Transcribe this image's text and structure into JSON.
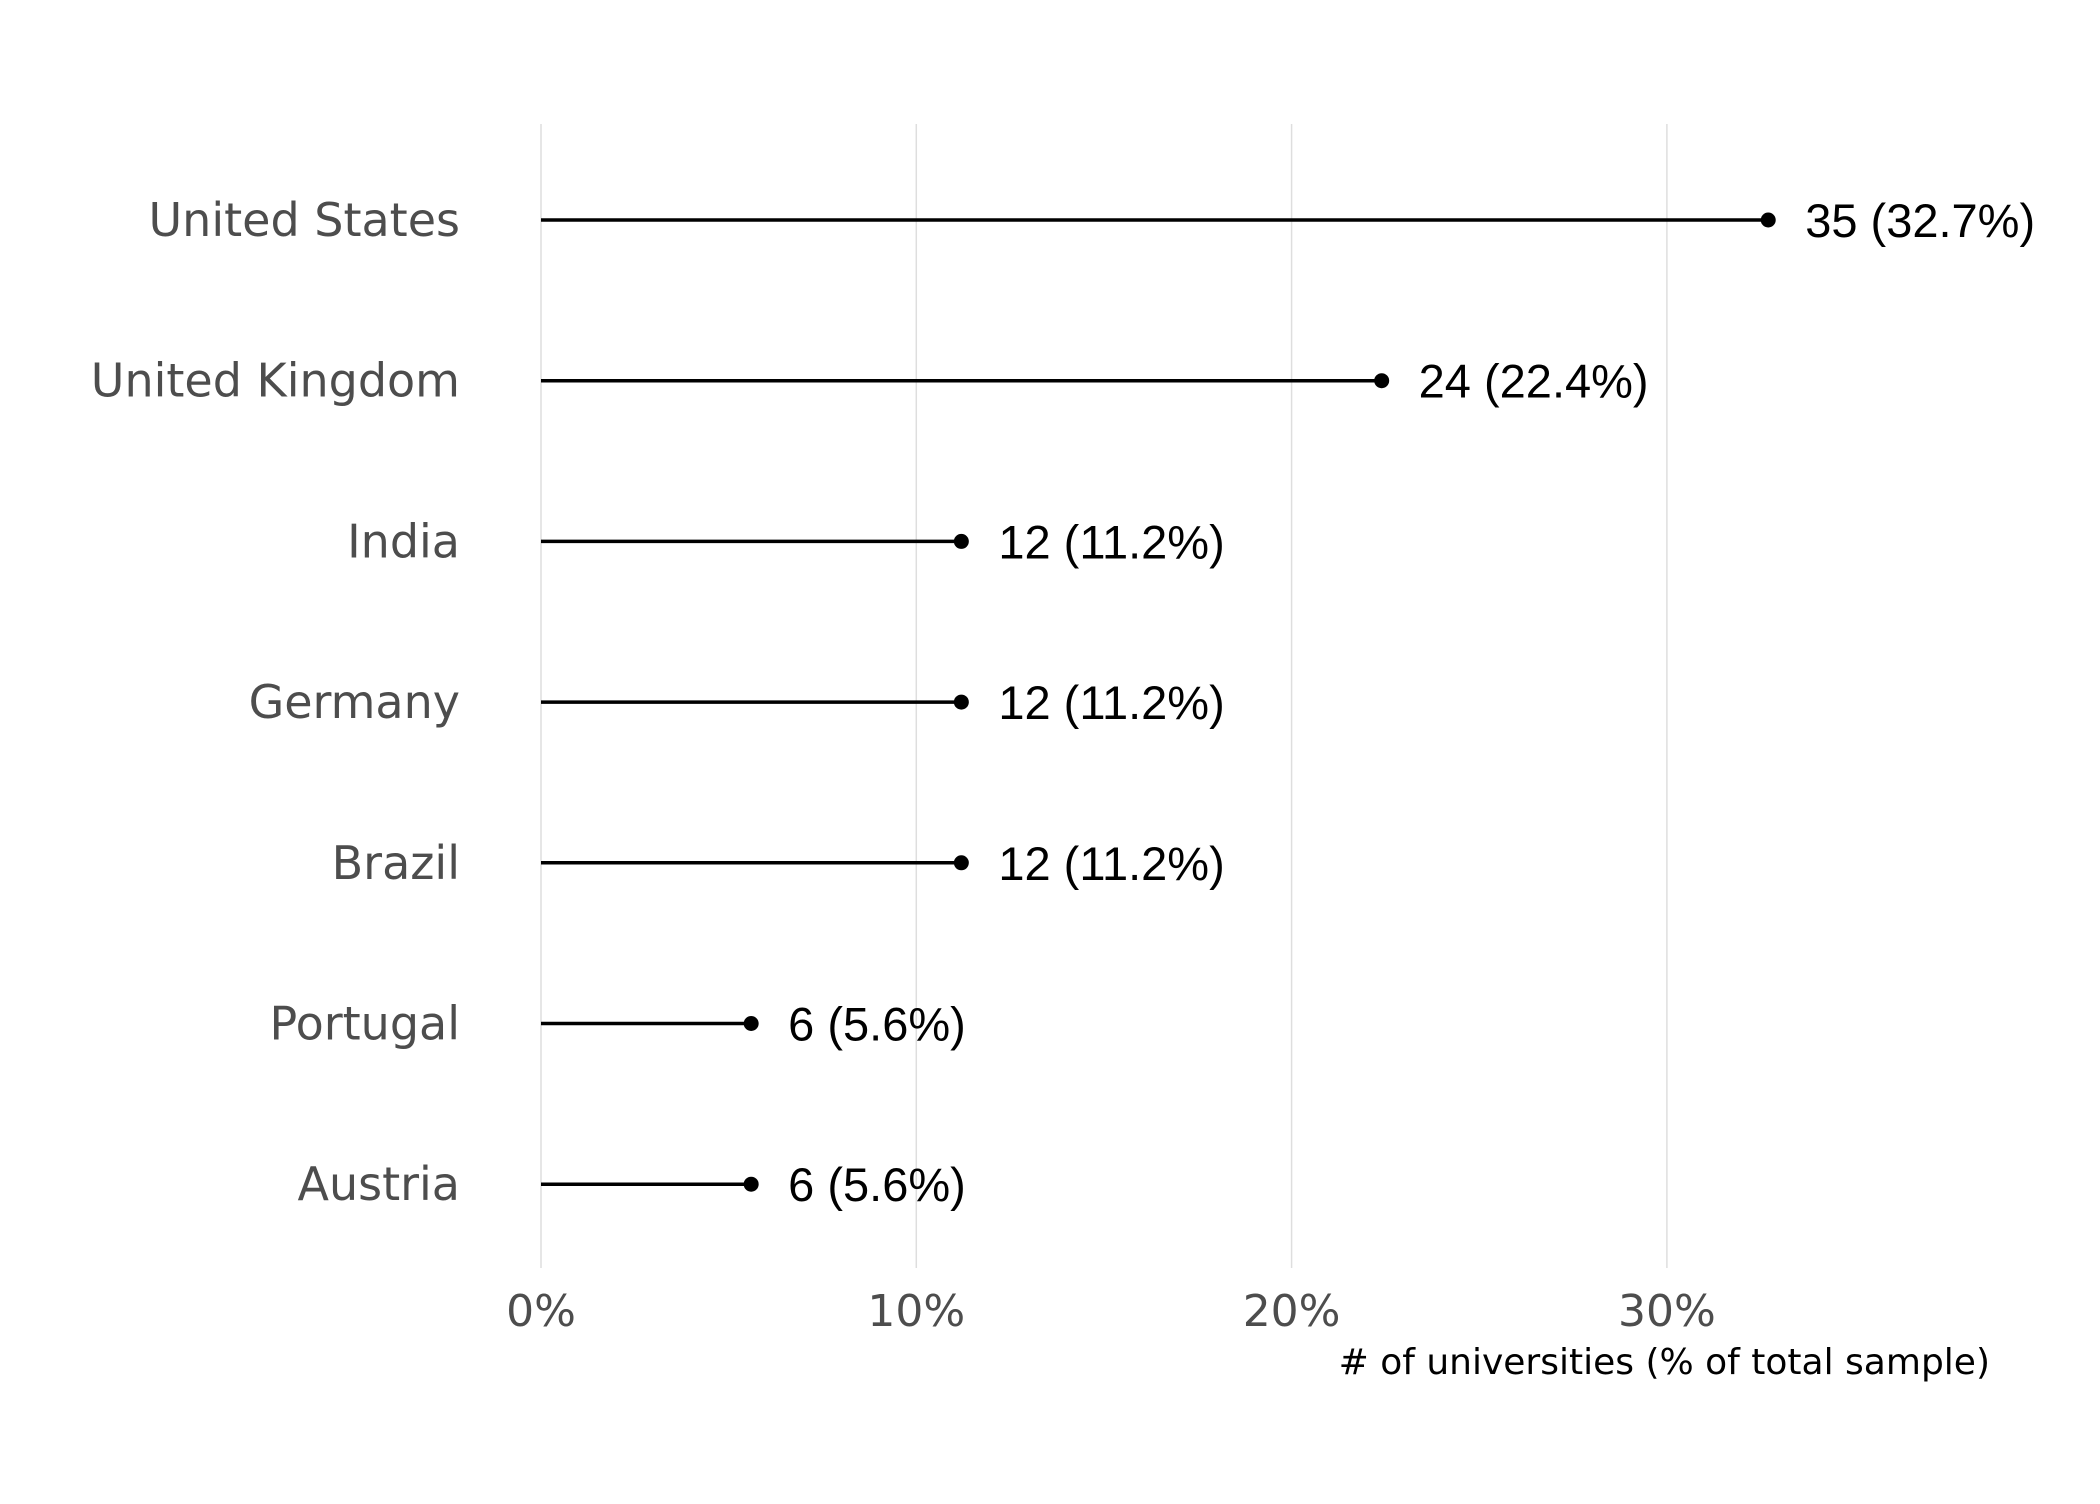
{
  "chart_data": {
    "type": "lollipop",
    "orientation": "horizontal",
    "categories": [
      "United States",
      "United Kingdom",
      "India",
      "Germany",
      "Brazil",
      "Portugal",
      "Austria"
    ],
    "counts": [
      35,
      24,
      12,
      12,
      12,
      6,
      6
    ],
    "values": [
      32.7,
      22.4,
      11.2,
      11.2,
      11.2,
      5.6,
      5.6
    ],
    "data_labels": [
      "35 (32.7%)",
      "24 (22.4%)",
      "12 (11.2%)",
      "12 (11.2%)",
      "12 (11.2%)",
      "6 (5.6%)",
      "6 (5.6%)"
    ],
    "x_ticks": [
      0,
      10,
      20,
      30
    ],
    "x_tick_labels": [
      "0%",
      "10%",
      "20%",
      "30%"
    ],
    "xlim": [
      0,
      36
    ],
    "xlabel": "# of universities (% of total sample)",
    "ylabel": "",
    "title": "",
    "grid": "vertical major gridlines",
    "legend": "none",
    "colors": {
      "stem": "#000000",
      "point": "#000000",
      "grid": "#dedede",
      "category_text": "#4d4d4d",
      "label_text": "#000000"
    }
  }
}
